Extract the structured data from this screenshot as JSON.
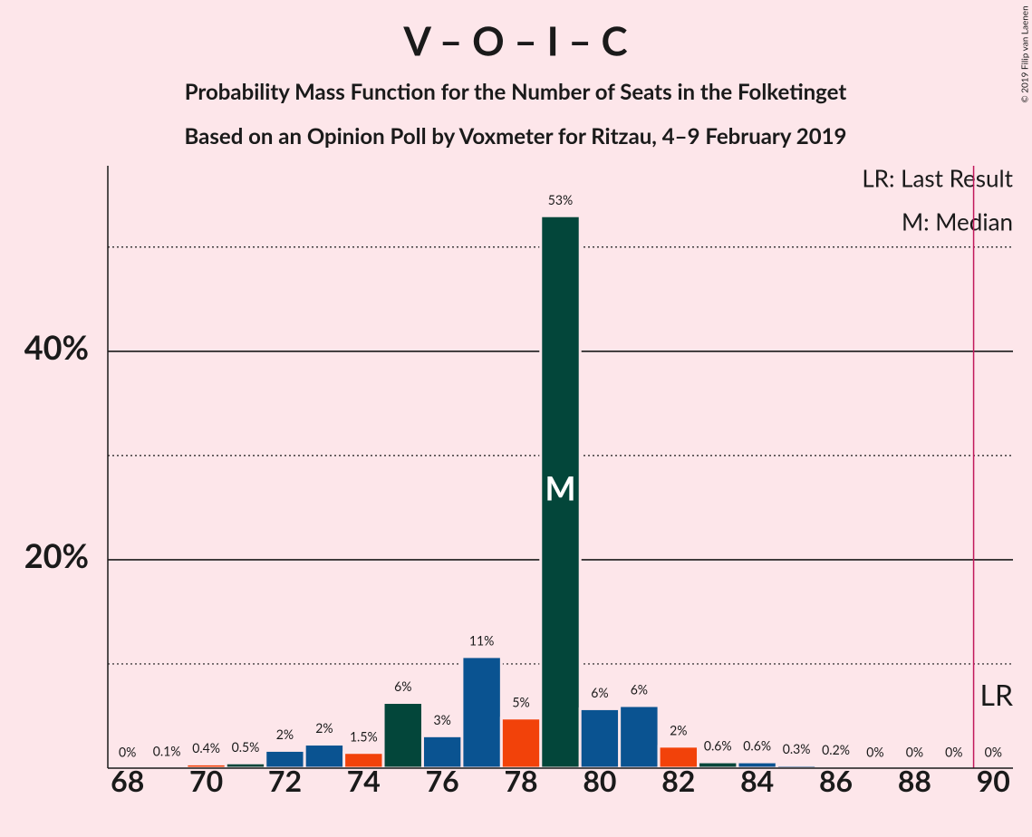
{
  "chart_data": {
    "type": "bar",
    "title": "V – O – I – C",
    "subtitle": "Probability Mass Function for the Number of Seats in the Folketinget",
    "subtitle2": "Based on an Opinion Poll by Voxmeter for Ritzau, 4–9 February 2019",
    "copyright": "© 2019 Filip van Laenen",
    "x": [
      68,
      69,
      70,
      71,
      72,
      73,
      74,
      75,
      76,
      77,
      78,
      79,
      80,
      81,
      82,
      83,
      84,
      85,
      86,
      87,
      88,
      89,
      90
    ],
    "values": [
      0,
      0.1,
      0.4,
      0.5,
      1.7,
      2.3,
      1.5,
      6.3,
      3.1,
      10.7,
      4.8,
      53,
      5.7,
      6.0,
      2.1,
      0.6,
      0.6,
      0.3,
      0.2,
      0,
      0,
      0,
      0
    ],
    "value_labels": [
      "0%",
      "0.1%",
      "0.4%",
      "0.5%",
      "2%",
      "2%",
      "1.5%",
      "6%",
      "3%",
      "11%",
      "5%",
      "53%",
      "6%",
      "6%",
      "2%",
      "0.6%",
      "0.6%",
      "0.3%",
      "0.2%",
      "0%",
      "0%",
      "0%",
      "0%"
    ],
    "colors": [
      "#0a5391",
      "#0a5391",
      "#f2420a",
      "#03463a",
      "#0a5391",
      "#0a5391",
      "#f2420a",
      "#03463a",
      "#0a5391",
      "#0a5391",
      "#f2420a",
      "#03463a",
      "#0a5391",
      "#0a5391",
      "#f2420a",
      "#03463a",
      "#0a5391",
      "#0a5391",
      "#f2420a",
      "#03463a",
      "#0a5391",
      "#0a5391",
      "#f2420a"
    ],
    "xlim": [
      67.5,
      90.5
    ],
    "xticks": [
      68,
      70,
      72,
      74,
      76,
      78,
      80,
      82,
      84,
      86,
      88,
      90
    ],
    "ylim": [
      0,
      57.8
    ],
    "yticks": [
      {
        "value": 20,
        "label": "20%"
      },
      {
        "value": 40,
        "label": "40%"
      }
    ],
    "minor_yticks": [
      10,
      30,
      50
    ],
    "grid": true,
    "median": 79,
    "median_label": "M",
    "last_result": 90,
    "last_result_label": "LR",
    "legend": [
      "LR: Last Result",
      "M: Median"
    ]
  }
}
